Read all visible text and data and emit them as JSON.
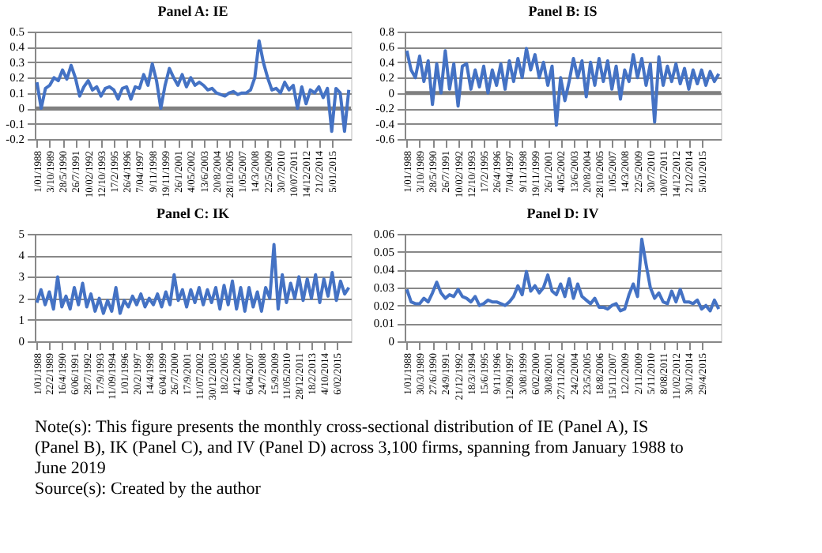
{
  "chart_data": [
    {
      "type": "line",
      "title": "Panel A: IE",
      "categories": [
        "1/01/1988",
        null,
        null,
        "3/10/1989",
        null,
        null,
        "28/5/1990",
        null,
        null,
        "26/7/1991",
        null,
        null,
        "10/02/1992",
        null,
        null,
        "12/10/1993",
        null,
        null,
        "17/2/1995",
        null,
        null,
        "26/4/1996",
        null,
        null,
        "7/04/1997",
        null,
        null,
        "9/11/1998",
        null,
        null,
        "19/11/1999",
        null,
        null,
        "26/1/2001",
        null,
        null,
        "4/05/2002",
        null,
        null,
        "13/6/2003",
        null,
        null,
        "20/8/2004",
        null,
        null,
        "28/10/2005",
        null,
        null,
        "1/05/2007",
        null,
        null,
        "14/3/2008",
        null,
        null,
        "22/5/2009",
        null,
        null,
        "30/7/2010",
        null,
        null,
        "10/07/2011",
        null,
        null,
        "14/12/2012",
        null,
        null,
        "21/2/2014",
        null,
        null,
        "5/01/2015",
        null,
        null,
        null,
        null
      ],
      "series": [
        {
          "color": "#4472c4",
          "values": [
            0.17,
            0.0,
            0.13,
            0.15,
            0.2,
            0.18,
            0.25,
            0.19,
            0.28,
            0.2,
            0.08,
            0.14,
            0.18,
            0.12,
            0.14,
            0.08,
            0.13,
            0.14,
            0.12,
            0.06,
            0.13,
            0.14,
            0.06,
            0.14,
            0.13,
            0.22,
            0.15,
            0.29,
            0.18,
            0.0,
            0.15,
            0.26,
            0.2,
            0.15,
            0.22,
            0.14,
            0.2,
            0.15,
            0.17,
            0.15,
            0.12,
            0.13,
            0.1,
            0.09,
            0.08,
            0.1,
            0.11,
            0.09,
            0.1,
            0.1,
            0.12,
            0.2,
            0.44,
            0.3,
            0.2,
            0.12,
            0.13,
            0.1,
            0.17,
            0.12,
            0.15,
            0.0,
            0.14,
            0.03,
            0.12,
            0.1,
            0.14,
            0.07,
            0.13,
            -0.15,
            0.13,
            0.1,
            -0.15,
            0.12
          ]
        }
      ],
      "ylim": [
        -0.2,
        0.5
      ],
      "yticks": [
        -0.2,
        -0.1,
        0,
        0.1,
        0.2,
        0.3,
        0.4,
        0.5
      ],
      "grid": "y",
      "ref_lines": [
        {
          "axis": "y",
          "value": 0,
          "color": "#808080"
        }
      ]
    },
    {
      "type": "line",
      "title": "Panel B: IS",
      "categories": [
        "1/01/1988",
        null,
        null,
        "3/10/1989",
        null,
        null,
        "28/5/1990",
        null,
        null,
        "26/7/1991",
        null,
        null,
        "10/02/1992",
        null,
        null,
        "12/10/1993",
        null,
        null,
        "17/2/1995",
        null,
        null,
        "26/4/1996",
        null,
        null,
        "7/04/1997",
        null,
        null,
        "9/11/1998",
        null,
        null,
        "19/11/1999",
        null,
        null,
        "26/1/2001",
        null,
        null,
        "4/05/2002",
        null,
        null,
        "13/6/2003",
        null,
        null,
        "20/8/2004",
        null,
        null,
        "28/10/2005",
        null,
        null,
        "1/05/2007",
        null,
        null,
        "14/3/2008",
        null,
        null,
        "22/5/2009",
        null,
        null,
        "30/7/2010",
        null,
        null,
        "10/07/2011",
        null,
        null,
        "14/12/2012",
        null,
        null,
        "21/2/2014",
        null,
        null,
        "5/01/2015",
        null,
        null,
        null,
        null
      ],
      "series": [
        {
          "color": "#4472c4",
          "values": [
            0.55,
            0.3,
            0.2,
            0.48,
            0.15,
            0.42,
            -0.15,
            0.38,
            0.0,
            0.55,
            0.05,
            0.38,
            -0.17,
            0.35,
            0.38,
            0.05,
            0.3,
            0.08,
            0.35,
            0.0,
            0.3,
            0.1,
            0.38,
            0.05,
            0.42,
            0.15,
            0.45,
            0.2,
            0.58,
            0.3,
            0.5,
            0.2,
            0.4,
            0.1,
            0.35,
            -0.42,
            0.2,
            -0.1,
            0.15,
            0.45,
            0.2,
            0.42,
            -0.05,
            0.4,
            0.1,
            0.45,
            0.15,
            0.42,
            0.05,
            0.35,
            -0.08,
            0.3,
            0.15,
            0.5,
            0.2,
            0.45,
            0.1,
            0.38,
            -0.38,
            0.47,
            0.1,
            0.35,
            0.15,
            0.38,
            0.12,
            0.32,
            0.05,
            0.3,
            0.12,
            0.3,
            0.1,
            0.28,
            0.15,
            0.25
          ]
        }
      ],
      "ylim": [
        -0.6,
        0.8
      ],
      "yticks": [
        -0.6,
        -0.4,
        -0.2,
        0,
        0.2,
        0.4,
        0.6,
        0.8
      ],
      "grid": "y",
      "ref_lines": [
        {
          "axis": "y",
          "value": 0,
          "color": "#808080"
        }
      ]
    },
    {
      "type": "line",
      "title": "Panel C: IK",
      "categories": [
        "1/01/1988",
        null,
        null,
        "22/2/1989",
        null,
        null,
        "16/4/1990",
        null,
        null,
        "6/06/1991",
        null,
        null,
        "28/7/1992",
        null,
        null,
        "17/9/1993",
        null,
        null,
        "11/09/1994",
        null,
        null,
        "1/01/1996",
        null,
        null,
        "20/2/1997",
        null,
        null,
        "14/4/1998",
        null,
        null,
        "6/04/1999",
        null,
        null,
        "26/7/2000",
        null,
        null,
        "17/9/2001",
        null,
        null,
        "11/07/2002",
        null,
        null,
        "30/12/2003",
        null,
        null,
        "18/2/2005",
        null,
        null,
        "4/12/2006",
        null,
        null,
        "6/04/2007",
        null,
        null,
        "24/7/2008",
        null,
        null,
        "15/9/2009",
        null,
        null,
        "11/05/2010",
        null,
        null,
        "28/12/2011",
        null,
        null,
        "18/2/2013",
        null,
        null,
        "4/10/2014",
        null,
        null,
        "6/02/2015",
        null,
        null,
        null
      ],
      "series": [
        {
          "color": "#4472c4",
          "values": [
            1.8,
            2.4,
            1.7,
            2.3,
            1.5,
            3.0,
            1.6,
            2.1,
            1.5,
            2.5,
            1.7,
            2.7,
            1.6,
            2.2,
            1.4,
            2.0,
            1.3,
            1.9,
            1.4,
            2.5,
            1.3,
            1.9,
            1.6,
            2.1,
            1.7,
            2.2,
            1.6,
            2.0,
            1.7,
            2.2,
            1.6,
            2.3,
            1.7,
            3.1,
            1.9,
            2.4,
            1.6,
            2.4,
            1.8,
            2.5,
            1.7,
            2.4,
            1.8,
            2.5,
            1.5,
            2.6,
            1.7,
            2.8,
            1.5,
            2.5,
            1.4,
            2.5,
            1.6,
            2.3,
            1.4,
            2.5,
            2.0,
            4.5,
            1.5,
            3.1,
            1.8,
            2.7,
            2.0,
            3.0,
            1.9,
            2.9,
            2.0,
            3.1,
            1.8,
            2.9,
            2.1,
            3.2,
            1.9,
            2.8,
            2.2,
            2.5
          ]
        }
      ],
      "ylim": [
        0,
        5
      ],
      "yticks": [
        0,
        1,
        2,
        3,
        4,
        5
      ],
      "grid": "y"
    },
    {
      "type": "line",
      "title": "Panel D: IV",
      "categories": [
        "1/01/1988",
        null,
        null,
        "30/3/1989",
        null,
        null,
        "27/6/1990",
        null,
        null,
        "24/9/1991",
        null,
        null,
        "21/12/1992",
        null,
        null,
        "18/3/1994",
        null,
        null,
        "15/6/1995",
        null,
        null,
        "9/11/1996",
        null,
        null,
        "12/09/1997",
        null,
        null,
        "3/08/1999",
        null,
        null,
        "6/02/2000",
        null,
        null,
        "30/8/2001",
        null,
        null,
        "27/11/2002",
        null,
        null,
        "24/2/2004",
        null,
        null,
        "23/5/2005",
        null,
        null,
        "18/8/2006",
        null,
        null,
        "15/11/2007",
        null,
        null,
        "12/2/2009",
        null,
        null,
        "2/11/2009",
        null,
        null,
        "5/11/2010",
        null,
        null,
        "8/08/2011",
        null,
        null,
        "11/02/2012",
        null,
        null,
        "30/1/2014",
        null,
        null,
        "29/4/2015",
        null,
        null,
        null,
        null
      ],
      "series": [
        {
          "color": "#4472c4",
          "values": [
            0.029,
            0.022,
            0.021,
            0.021,
            0.024,
            0.022,
            0.027,
            0.033,
            0.027,
            0.024,
            0.026,
            0.025,
            0.029,
            0.025,
            0.024,
            0.022,
            0.025,
            0.02,
            0.021,
            0.023,
            0.022,
            0.022,
            0.021,
            0.02,
            0.022,
            0.025,
            0.031,
            0.026,
            0.039,
            0.028,
            0.031,
            0.027,
            0.03,
            0.037,
            0.028,
            0.026,
            0.032,
            0.025,
            0.035,
            0.024,
            0.032,
            0.025,
            0.023,
            0.021,
            0.024,
            0.019,
            0.019,
            0.018,
            0.02,
            0.021,
            0.017,
            0.018,
            0.026,
            0.032,
            0.025,
            0.057,
            0.043,
            0.03,
            0.024,
            0.027,
            0.022,
            0.021,
            0.028,
            0.022,
            0.029,
            0.022,
            0.022,
            0.021,
            0.023,
            0.018,
            0.02,
            0.017,
            0.023,
            0.018
          ]
        }
      ],
      "ylim": [
        0,
        0.06
      ],
      "yticks": [
        0,
        0.01,
        0.02,
        0.03,
        0.04,
        0.05,
        0.06
      ],
      "grid": "y"
    },
    {
      "type": "other",
      "annotations": [
        "Note(s): This figure presents the monthly cross-sectional distribution of IE (Panel A), IS (Panel B), IK (Panel C), and IV (Panel D) across 3,100 firms, spanning from January 1988 to June 2019",
        "Source(s): Created by the author"
      ]
    }
  ]
}
